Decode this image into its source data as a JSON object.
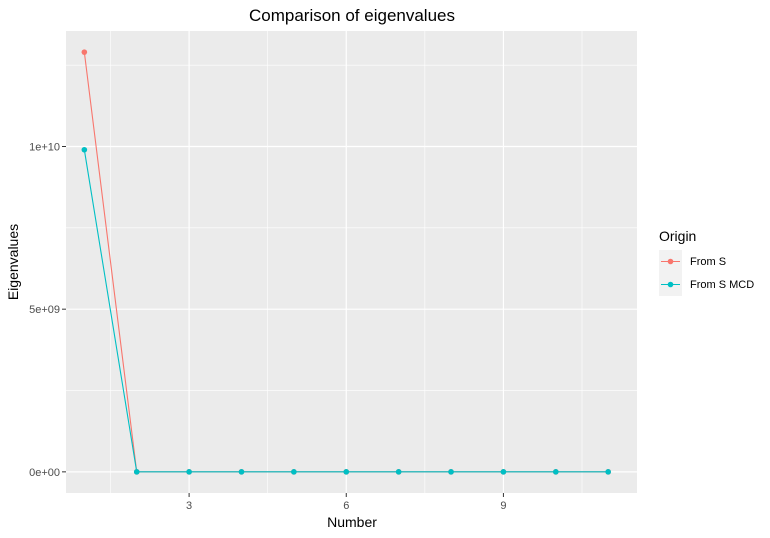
{
  "chart_data": {
    "type": "line",
    "title": "Comparison of eigenvalues",
    "xlabel": "Number",
    "ylabel": "Eigenvalues",
    "x": [
      1,
      2,
      3,
      4,
      5,
      6,
      7,
      8,
      9,
      10,
      11
    ],
    "xlim": [
      0.65,
      11.55
    ],
    "ylim": [
      -650000000,
      13550000000
    ],
    "x_ticks": [
      3,
      6,
      9
    ],
    "x_tick_labels": [
      "3",
      "6",
      "9"
    ],
    "y_ticks": [
      0,
      5000000000,
      10000000000
    ],
    "y_tick_labels": [
      "0e+00",
      "5e+09",
      "1e+10"
    ],
    "grid": true,
    "legend": {
      "title": "Origin",
      "position": "right"
    },
    "series": [
      {
        "name": "From S",
        "color": "#F8766D",
        "values": [
          12900000000,
          0,
          0,
          0,
          0,
          0,
          0,
          0,
          0,
          0,
          0
        ]
      },
      {
        "name": "From S MCD",
        "color": "#00BFC4",
        "values": [
          9900000000,
          0,
          0,
          0,
          0,
          0,
          0,
          0,
          0,
          0,
          0
        ]
      }
    ]
  }
}
